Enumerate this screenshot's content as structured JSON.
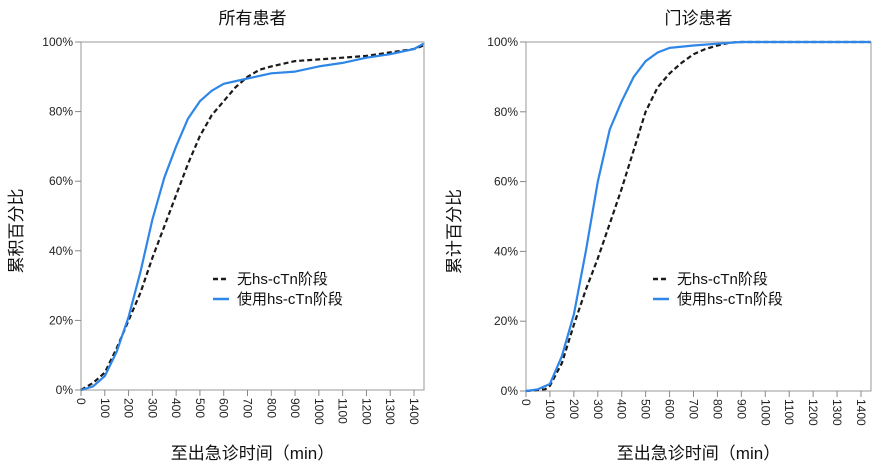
{
  "chart_data": [
    {
      "type": "line",
      "title": "所有患者",
      "xlabel": "至出急诊时间（min）",
      "ylabel": "累积百分比",
      "xlim": [
        0,
        1440
      ],
      "ylim": [
        0,
        100
      ],
      "x_ticks": [
        "0",
        "100",
        "200",
        "300",
        "400",
        "500",
        "600",
        "700",
        "800",
        "900",
        "1000",
        "1100",
        "1200",
        "1300",
        "1400"
      ],
      "y_ticks": [
        "0%",
        "20%",
        "40%",
        "60%",
        "80%",
        "100%"
      ],
      "grid": false,
      "legend_position": "center-right",
      "series": [
        {
          "name": "无hs-cTn阶段",
          "color": "#1a1a1a",
          "style": "dashed",
          "x": [
            0,
            50,
            100,
            150,
            200,
            250,
            300,
            350,
            400,
            450,
            500,
            550,
            600,
            650,
            700,
            750,
            800,
            900,
            1000,
            1100,
            1200,
            1300,
            1400,
            1440
          ],
          "y": [
            0,
            2,
            5,
            12,
            20,
            28,
            38,
            47,
            56,
            65,
            73,
            79,
            83,
            87,
            90,
            92,
            93,
            94.5,
            95,
            95.5,
            96,
            97,
            98,
            99
          ]
        },
        {
          "name": "使用hs-cTn阶段",
          "color": "#2e86e8",
          "style": "solid",
          "x": [
            0,
            50,
            100,
            150,
            200,
            250,
            300,
            350,
            400,
            450,
            500,
            550,
            600,
            700,
            800,
            900,
            1000,
            1100,
            1200,
            1300,
            1400,
            1440
          ],
          "y": [
            0,
            1,
            4,
            11,
            21,
            34,
            49,
            61,
            70,
            78,
            83,
            86,
            88,
            89.5,
            91,
            91.5,
            93,
            94,
            95.5,
            96.5,
            98,
            99.5
          ]
        }
      ]
    },
    {
      "type": "line",
      "title": "门诊患者",
      "xlabel": "至出急诊时间（min）",
      "ylabel": "累计百分比",
      "xlim": [
        0,
        1440
      ],
      "ylim": [
        0,
        100
      ],
      "x_ticks": [
        "0",
        "100",
        "200",
        "300",
        "400",
        "500",
        "600",
        "700",
        "800",
        "900",
        "1000",
        "1100",
        "1200",
        "1300",
        "1400"
      ],
      "y_ticks": [
        "0%",
        "20%",
        "40%",
        "60%",
        "80%",
        "100%"
      ],
      "grid": false,
      "legend_position": "center-right",
      "series": [
        {
          "name": "无hs-cTn阶段",
          "color": "#1a1a1a",
          "style": "dashed",
          "x": [
            0,
            80,
            100,
            150,
            200,
            250,
            300,
            350,
            400,
            450,
            500,
            550,
            600,
            650,
            700,
            750,
            800,
            850,
            900,
            1440
          ],
          "y": [
            0,
            0.5,
            1.5,
            8,
            19,
            29,
            38,
            48,
            58,
            69,
            80,
            87,
            91,
            94,
            96.5,
            98,
            99,
            99.8,
            100,
            100
          ]
        },
        {
          "name": "使用hs-cTn阶段",
          "color": "#2e86e8",
          "style": "solid",
          "x": [
            0,
            50,
            100,
            150,
            200,
            250,
            300,
            350,
            400,
            450,
            500,
            550,
            600,
            700,
            800,
            900,
            1440
          ],
          "y": [
            0,
            0.5,
            2,
            10,
            22,
            40,
            60,
            75,
            83,
            90,
            94.5,
            97,
            98.3,
            99,
            99.5,
            100,
            100
          ]
        }
      ]
    }
  ]
}
